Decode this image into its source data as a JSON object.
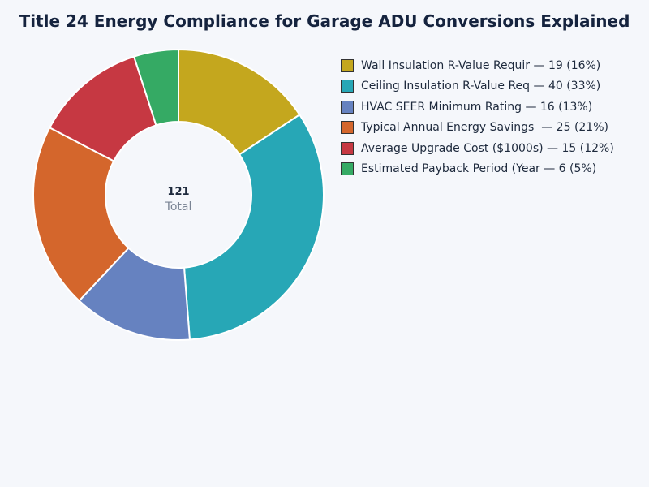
{
  "chart_data": {
    "type": "pie",
    "variant": "donut",
    "title": "Title 24 Energy Compliance for Garage ADU Conversions Explained",
    "legend_position": "right",
    "center": {
      "total": "121",
      "label": "Total"
    },
    "slices": [
      {
        "label": "Wall Insulation R-Value Requir",
        "value": 19,
        "percent": "16%",
        "color": "#c4a71e",
        "legend_text": "Wall Insulation R-Value Requir — 19 (16%)"
      },
      {
        "label": "Ceiling Insulation R-Value Req",
        "value": 40,
        "percent": "33%",
        "color": "#27a7b6",
        "legend_text": "Ceiling Insulation R-Value Req — 40 (33%)"
      },
      {
        "label": "HVAC SEER Minimum Rating",
        "value": 16,
        "percent": "13%",
        "color": "#6682c0",
        "legend_text": "HVAC SEER Minimum Rating — 16 (13%)"
      },
      {
        "label": "Typical Annual Energy Savings ",
        "value": 25,
        "percent": "21%",
        "color": "#d4662c",
        "legend_text": "Typical Annual Energy Savings  — 25 (21%)"
      },
      {
        "label": "Average Upgrade Cost ($1000s)",
        "value": 15,
        "percent": "12%",
        "color": "#c63842",
        "legend_text": "Average Upgrade Cost ($1000s) — 15 (12%)"
      },
      {
        "label": "Estimated Payback Period (Year",
        "value": 6,
        "percent": "5%",
        "color": "#35aa64",
        "legend_text": "Estimated Payback Period (Year — 6 (5%)"
      }
    ]
  }
}
